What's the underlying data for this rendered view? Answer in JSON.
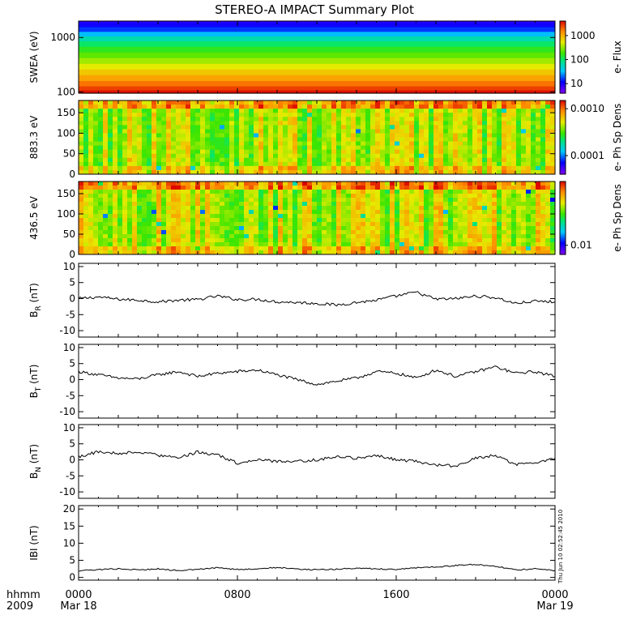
{
  "title": "STEREO-A IMPACT Summary Plot",
  "time_axis": {
    "row1_label": "hhmm",
    "row2_label": "2009",
    "ticks": [
      {
        "hour": 0,
        "label": "0000",
        "date": "Mar 18"
      },
      {
        "hour": 8,
        "label": "0800",
        "date": ""
      },
      {
        "hour": 16,
        "label": "1600",
        "date": ""
      },
      {
        "hour": 24,
        "label": "0000",
        "date": "Mar 19"
      }
    ],
    "range_hours": [
      0,
      24
    ]
  },
  "stamp": "Thu Jun 10 02:52:45 2010",
  "chart_data": [
    {
      "type": "heatmap",
      "ylabel": "SWEA (eV)",
      "yscale": "log",
      "ylim": [
        95,
        2000
      ],
      "yticks": [
        100,
        1000
      ],
      "ytick_labels": [
        "100",
        "1000"
      ],
      "colorbar": {
        "label": "e- Flux",
        "scale": "log",
        "range": [
          4,
          4000
        ],
        "ticks": [
          10,
          100,
          1000
        ],
        "tick_labels": [
          "10",
          "100",
          "1000"
        ]
      },
      "bands": [
        {
          "energy": 2000,
          "flux": 8
        },
        {
          "energy": 1700,
          "flux": 10
        },
        {
          "energy": 1400,
          "flux": 15
        },
        {
          "energy": 1150,
          "flux": 30
        },
        {
          "energy": 950,
          "flux": 60
        },
        {
          "energy": 750,
          "flux": 100
        },
        {
          "energy": 600,
          "flux": 150
        },
        {
          "energy": 470,
          "flux": 220
        },
        {
          "energy": 370,
          "flux": 330
        },
        {
          "energy": 290,
          "flux": 500
        },
        {
          "energy": 230,
          "flux": 750
        },
        {
          "energy": 180,
          "flux": 1100
        },
        {
          "energy": 140,
          "flux": 1700
        },
        {
          "energy": 115,
          "flux": 2500
        },
        {
          "energy": 100,
          "flux": 3500
        }
      ]
    },
    {
      "type": "heatmap",
      "ylabel": "883.3 eV",
      "ylim": [
        0,
        180
      ],
      "yticks": [
        0,
        50,
        100,
        150
      ],
      "colorbar": {
        "label": "e- Ph Sp Dens",
        "scale": "log",
        "range": [
          4e-05,
          0.0015
        ],
        "ticks": [
          0.0001,
          0.001
        ],
        "tick_labels": [
          "0.0001",
          "0.0010"
        ]
      },
      "base_level": 0.0004
    },
    {
      "type": "heatmap",
      "ylabel": "436.5 eV",
      "ylim": [
        0,
        180
      ],
      "yticks": [
        0,
        50,
        100,
        150
      ],
      "colorbar": {
        "label": "e- Ph Sp Dens",
        "scale": "log",
        "range": [
          0.007,
          0.12
        ],
        "ticks": [
          0.01
        ],
        "tick_labels": [
          "0.01"
        ]
      },
      "base_level": 0.045
    },
    {
      "type": "line",
      "ylabel_main": "B",
      "ylabel_sub": "R",
      "ylabel_unit": "(nT)",
      "ylim": [
        -12,
        11
      ],
      "yticks": [
        -10,
        -5,
        0,
        5,
        10
      ],
      "x": [
        0,
        1,
        2,
        3,
        4,
        5,
        6,
        7,
        8,
        9,
        10,
        11,
        12,
        13,
        14,
        15,
        16,
        17,
        18,
        19,
        20,
        21,
        22,
        23,
        24
      ],
      "values": [
        0.0,
        0.5,
        -0.2,
        -0.5,
        -1.0,
        -0.5,
        -0.3,
        0.8,
        -0.3,
        -0.2,
        -1.0,
        -1.2,
        -1.5,
        -2.0,
        -1.2,
        -0.5,
        0.8,
        2.0,
        -0.2,
        0.0,
        0.8,
        0.3,
        -1.5,
        -0.8,
        -1.0
      ]
    },
    {
      "type": "line",
      "ylabel_main": "B",
      "ylabel_sub": "T",
      "ylabel_unit": "(nT)",
      "ylim": [
        -12,
        11
      ],
      "yticks": [
        -10,
        -5,
        0,
        5,
        10
      ],
      "x": [
        0,
        1,
        2,
        3,
        4,
        5,
        6,
        7,
        8,
        9,
        10,
        11,
        12,
        13,
        14,
        15,
        16,
        17,
        18,
        19,
        20,
        21,
        22,
        23,
        24
      ],
      "values": [
        2.5,
        1.5,
        0.5,
        0.2,
        1.5,
        2.5,
        1.0,
        2.0,
        2.5,
        3.0,
        1.5,
        0.0,
        -1.5,
        -0.5,
        0.5,
        2.5,
        2.0,
        0.5,
        3.0,
        1.0,
        2.5,
        4.0,
        2.0,
        2.5,
        1.0
      ]
    },
    {
      "type": "line",
      "ylabel_main": "B",
      "ylabel_sub": "N",
      "ylabel_unit": "(nT)",
      "ylim": [
        -12,
        11
      ],
      "yticks": [
        -10,
        -5,
        0,
        5,
        10
      ],
      "x": [
        0,
        1,
        2,
        3,
        4,
        5,
        6,
        7,
        8,
        9,
        10,
        11,
        12,
        13,
        14,
        15,
        16,
        17,
        18,
        19,
        20,
        21,
        22,
        23,
        24
      ],
      "values": [
        1.0,
        2.5,
        2.0,
        2.5,
        1.5,
        0.5,
        2.5,
        1.5,
        -1.0,
        0.0,
        -0.5,
        -0.5,
        0.0,
        1.0,
        0.5,
        1.5,
        0.0,
        -0.5,
        -1.5,
        -2.0,
        0.5,
        1.5,
        -1.5,
        -1.0,
        0.5
      ]
    },
    {
      "type": "line",
      "ylabel_main": "IBI",
      "ylabel_sub": "",
      "ylabel_unit": "(nT)",
      "ylim": [
        -0.8,
        21
      ],
      "yticks": [
        0,
        5,
        10,
        15,
        20
      ],
      "x": [
        0,
        1,
        2,
        3,
        4,
        5,
        6,
        7,
        8,
        9,
        10,
        11,
        12,
        13,
        14,
        15,
        16,
        17,
        18,
        19,
        20,
        21,
        22,
        23,
        24
      ],
      "values": [
        2.0,
        2.3,
        2.5,
        2.2,
        2.5,
        2.0,
        2.4,
        2.8,
        2.3,
        2.5,
        2.9,
        2.5,
        2.2,
        2.4,
        2.7,
        2.5,
        2.3,
        2.8,
        3.0,
        3.5,
        3.8,
        3.3,
        2.2,
        2.5,
        2.0
      ]
    }
  ]
}
